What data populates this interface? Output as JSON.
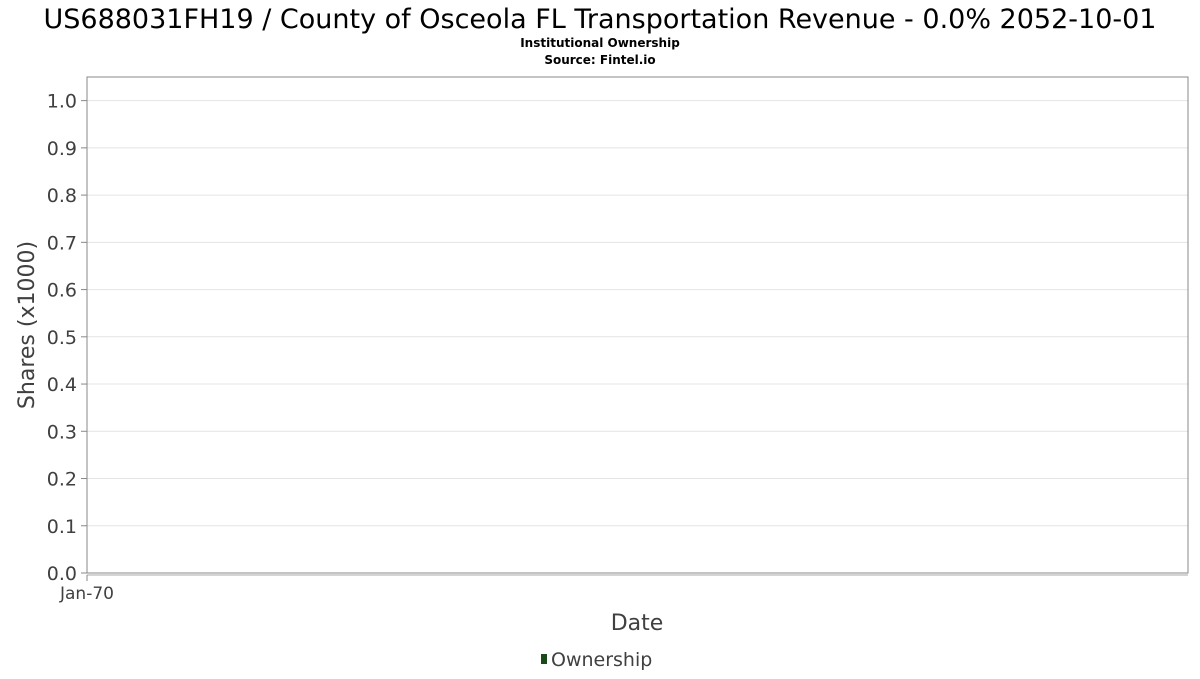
{
  "chart_data": {
    "type": "bar",
    "title": "US688031FH19 / County of Osceola FL Transportation Revenue - 0.0% 2052-10-01",
    "subtitle_lines": [
      "Institutional Ownership",
      "Source: Fintel.io"
    ],
    "xlabel": "Date",
    "ylabel": "Shares (x1000)",
    "x_ticks": [
      "Jan-70"
    ],
    "y_ticks": [
      "0.0",
      "0.1",
      "0.2",
      "0.3",
      "0.4",
      "0.5",
      "0.6",
      "0.7",
      "0.8",
      "0.9",
      "1.0"
    ],
    "ylim": [
      0.0,
      1.05
    ],
    "grid": true,
    "legend_position": "bottom-center",
    "series": [
      {
        "name": "Ownership",
        "color": "#1a4a1a",
        "x": [],
        "values": []
      }
    ]
  }
}
